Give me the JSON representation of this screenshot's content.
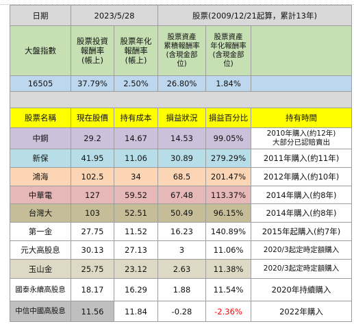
{
  "header": {
    "date_label": "日期",
    "date_value": "2023/5/28",
    "stock_period": "股票(2009/12/21起算，累計13年)"
  },
  "index_block": {
    "label": "大盤指數",
    "col1": "股票投資\n報酬率\n(帳上)",
    "col2": "股票年化\n報酬率\n(帳上)",
    "col3": "股票資產\n累積報酬率\n(含現金部\n位)",
    "col4": "股票資產\n年化報酬率\n(含現金部\n位)",
    "index_value": "16505",
    "v1": "37.79%",
    "v2": "2.50%",
    "v3": "26.80%",
    "v4": "1.84%"
  },
  "table": {
    "headers": [
      "股票名稱",
      "現在股價",
      "持有成本",
      "損益狀況",
      "損益百分比",
      "持有時間"
    ],
    "rows": [
      {
        "name": "中鋼",
        "price": "29.2",
        "cost": "14.67",
        "pnl": "14.53",
        "pct": "99.05%",
        "hold": "2010年購入(約12年)\n大部分已認賠賣出"
      },
      {
        "name": "新保",
        "price": "41.95",
        "cost": "11.06",
        "pnl": "30.89",
        "pct": "279.29%",
        "hold": "2011年購入(約11年)"
      },
      {
        "name": "鴻海",
        "price": "102.5",
        "cost": "34",
        "pnl": "68.5",
        "pct": "201.47%",
        "hold": "2012年購入(約10年)"
      },
      {
        "name": "中華電",
        "price": "127",
        "cost": "59.52",
        "pnl": "67.48",
        "pct": "113.37%",
        "hold": "2014年購入(約8年)"
      },
      {
        "name": "台灣大",
        "price": "103",
        "cost": "52.51",
        "pnl": "50.49",
        "pct": "96.15%",
        "hold": "2014年購入(約8年)"
      },
      {
        "name": "第一金",
        "price": "27.75",
        "cost": "11.52",
        "pnl": "16.23",
        "pct": "140.89%",
        "hold": "2015年起購入(約7年)"
      },
      {
        "name": "元大高股息",
        "price": "30.13",
        "cost": "27.13",
        "pnl": "3",
        "pct": "11.06%",
        "hold": "2020/3起定時定額購入"
      },
      {
        "name": "玉山金",
        "price": "25.75",
        "cost": "23.12",
        "pnl": "2.63",
        "pct": "11.38%",
        "hold": "2020/3起定時定額購入"
      },
      {
        "name": "國泰永續高股息",
        "price": "18.17",
        "cost": "16.29",
        "pnl": "1.88",
        "pct": "11.54%",
        "hold": "2020年持續購入"
      },
      {
        "name": "中信中國高股息",
        "price": "11.56",
        "cost": "11.84",
        "pnl": "-0.28",
        "pct": "-2.36%",
        "hold": "2022年購入"
      }
    ]
  },
  "colors": {
    "header_gray": "#d9d9d9",
    "header_green": "#c6e0b4",
    "value_blue": "#bdd7ee",
    "header_yellow": "#ffff00",
    "negative_red": "#ff0000"
  }
}
